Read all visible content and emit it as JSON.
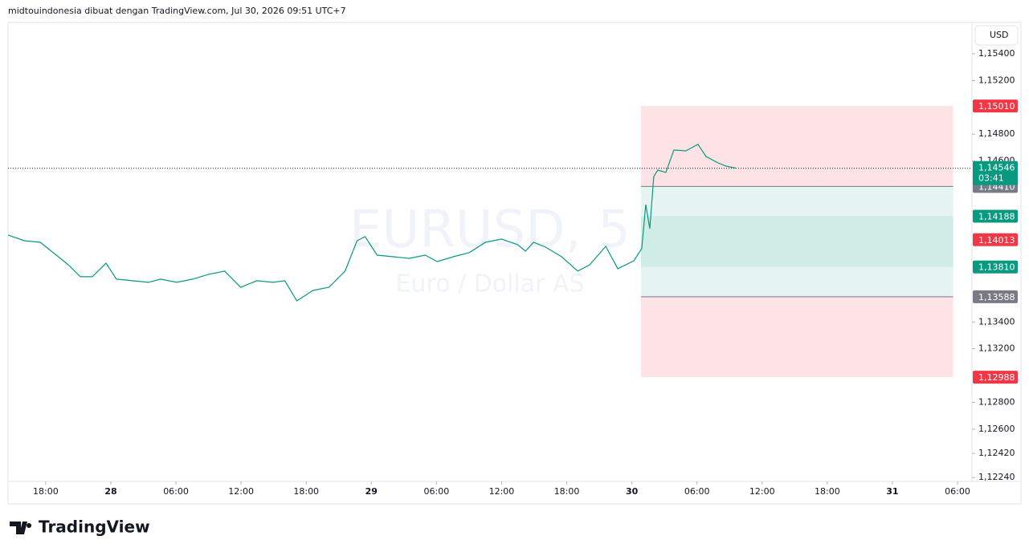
{
  "header": "midtouindonesia dibuat dengan TradingView.com, Jul 30, 2026 09:51 UTC+7",
  "footer_brand": "TradingView",
  "chart_data": {
    "type": "line",
    "watermark": "EURUSD, 5",
    "watermark_subtitle": "Euro / Dollar AS",
    "currency": "USD",
    "color": "#089981",
    "x": [
      -9.46,
      -7.98,
      -6.5,
      -5.02,
      -3.92,
      -2.81,
      -1.7,
      -0.44,
      0.52,
      2.0,
      3.47,
      4.58,
      6.06,
      7.54,
      9.01,
      10.49,
      11.97,
      13.45,
      14.93,
      16.03,
      17.14,
      18.62,
      20.1,
      21.58,
      22.68,
      23.42,
      24.53,
      26.01,
      27.49,
      28.96,
      30.07,
      31.55,
      33.03,
      34.51,
      35.99,
      37.46,
      38.2,
      38.94,
      40.05,
      41.53,
      43.01,
      44.11,
      45.59,
      46.7,
      48.18,
      48.91,
      49.28,
      49.65,
      50.02,
      50.39,
      51.13,
      51.87,
      52.98,
      54.09,
      54.83,
      55.94,
      56.67,
      57.63
    ],
    "values": [
      1.14048,
      1.14006,
      1.13994,
      1.13898,
      1.13826,
      1.13737,
      1.13737,
      1.13838,
      1.13719,
      1.13707,
      1.13695,
      1.13719,
      1.13695,
      1.13719,
      1.13755,
      1.13779,
      1.13659,
      1.13707,
      1.13695,
      1.13707,
      1.13557,
      1.13635,
      1.13659,
      1.13779,
      1.14006,
      1.14036,
      1.13898,
      1.13886,
      1.13874,
      1.13898,
      1.1385,
      1.13886,
      1.13917,
      1.13994,
      1.14018,
      1.13977,
      1.13928,
      1.13994,
      1.13958,
      1.13886,
      1.13779,
      1.13826,
      1.13964,
      1.13797,
      1.13856,
      1.13947,
      1.14275,
      1.14096,
      1.14485,
      1.14532,
      1.14515,
      1.14682,
      1.14676,
      1.14724,
      1.14634,
      1.14586,
      1.14562,
      1.14546
    ],
    "xlim": [
      -9.47,
      79.33
    ],
    "xticks": [
      {
        "value": -6,
        "label": "18:00"
      },
      {
        "value": 0,
        "label": "28"
      },
      {
        "value": 6,
        "label": "06:00"
      },
      {
        "value": 12,
        "label": "12:00"
      },
      {
        "value": 18,
        "label": "18:00"
      },
      {
        "value": 24,
        "label": "29"
      },
      {
        "value": 30,
        "label": "06:00"
      },
      {
        "value": 36,
        "label": "12:00"
      },
      {
        "value": 42,
        "label": "18:00"
      },
      {
        "value": 48,
        "label": "30"
      },
      {
        "value": 54,
        "label": "06:00"
      },
      {
        "value": 60,
        "label": "12:00"
      },
      {
        "value": 66,
        "label": "18:00"
      },
      {
        "value": 72,
        "label": "31"
      },
      {
        "value": 78,
        "label": "06:00"
      }
    ],
    "ylim": [
      1.12211,
      1.15633
    ],
    "yticks": [
      {
        "value": 1.154,
        "label": "1,15400"
      },
      {
        "value": 1.152,
        "label": "1,15200"
      },
      {
        "value": 1.148,
        "label": "1,14800"
      },
      {
        "value": 1.146,
        "label": "1,14600"
      },
      {
        "value": 1.134,
        "label": "1,13400"
      },
      {
        "value": 1.132,
        "label": "1,13200"
      },
      {
        "value": 1.128,
        "label": "1,12800"
      },
      {
        "value": 1.126,
        "label": "1,12600"
      },
      {
        "value": 1.1242,
        "label": "1,12420"
      },
      {
        "value": 1.1224,
        "label": "1,12240"
      }
    ],
    "positions": [
      {
        "x": [
          48.84,
          77.6
        ],
        "entry": 1.1441,
        "stop": 1.1501,
        "target": 1.1381
      },
      {
        "x": [
          48.84,
          77.6
        ],
        "entry": 1.13588,
        "stop": 1.12988,
        "target": 1.14188
      }
    ],
    "current_price": {
      "value": 1.14546,
      "label": "1,14546",
      "countdown": "03:41",
      "color": "#089981"
    },
    "price_markers": [
      {
        "value": 1.1501,
        "label": "1,15010",
        "color": "#f23645"
      },
      {
        "value": 1.1441,
        "label": "1,14410",
        "color": "#787b86"
      },
      {
        "value": 1.14188,
        "label": "1,14188",
        "color": "#089981"
      },
      {
        "value": 1.14013,
        "label": "1,14013",
        "color": "#f23645"
      },
      {
        "value": 1.1381,
        "label": "1,13810",
        "color": "#089981"
      },
      {
        "value": 1.13588,
        "label": "1,13588",
        "color": "#787b86"
      },
      {
        "value": 1.12988,
        "label": "1,12988",
        "color": "#f23645"
      }
    ]
  }
}
